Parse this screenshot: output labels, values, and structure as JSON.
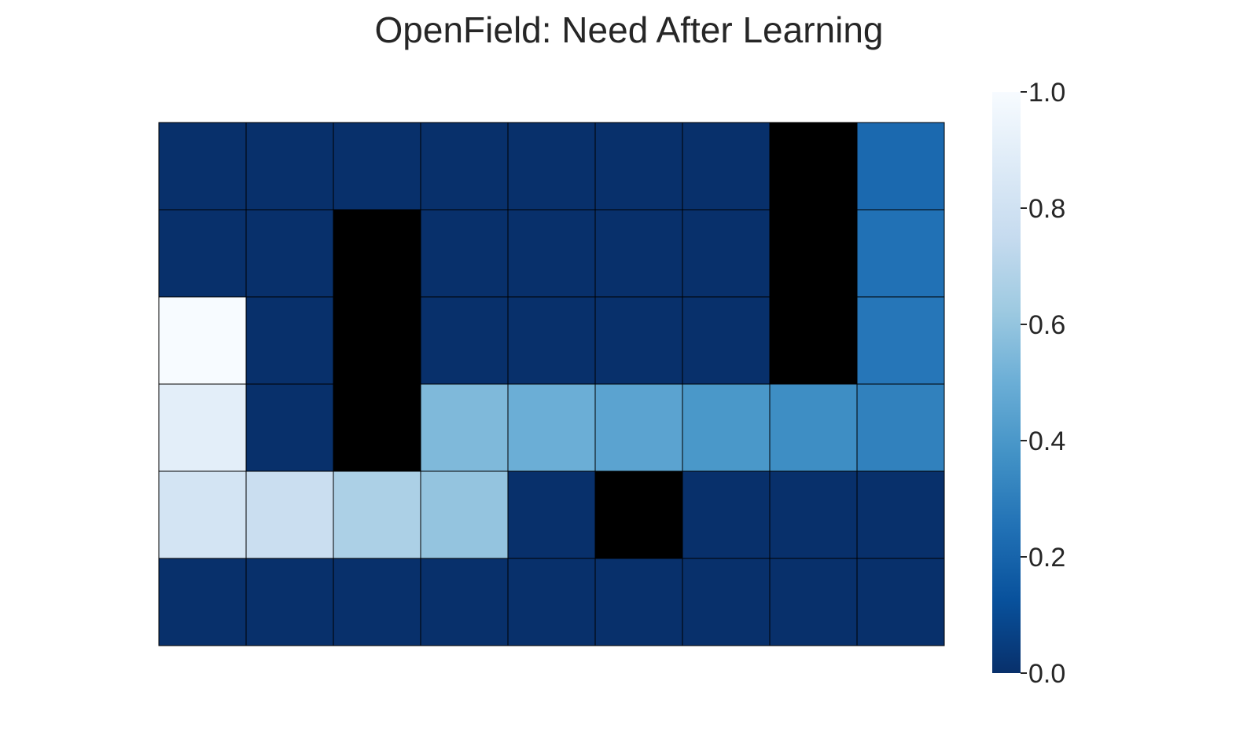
{
  "chart_data": {
    "type": "heatmap",
    "title": "OpenField: Need After Learning",
    "xlabel": "",
    "ylabel": "",
    "rows": 6,
    "cols": 9,
    "colormap": "Blues_r",
    "wall_color": "#000000",
    "cell_border_color": "#000000",
    "grid": false,
    "values": [
      [
        0.0,
        0.0,
        0.0,
        0.0,
        0.0,
        0.0,
        0.0,
        null,
        0.22
      ],
      [
        0.0,
        0.0,
        null,
        0.0,
        0.0,
        0.0,
        0.0,
        null,
        0.25
      ],
      [
        1.0,
        0.0,
        null,
        0.0,
        0.0,
        0.0,
        0.0,
        null,
        0.27
      ],
      [
        0.9,
        0.0,
        null,
        0.55,
        0.5,
        0.45,
        0.4,
        0.36,
        0.31
      ],
      [
        0.82,
        0.77,
        0.67,
        0.6,
        0.0,
        null,
        0.0,
        0.0,
        0.0
      ],
      [
        0.0,
        0.0,
        0.0,
        0.0,
        0.0,
        0.0,
        0.0,
        0.0,
        0.0
      ]
    ],
    "colorbar": {
      "min": 0.0,
      "max": 1.0,
      "ticks": [
        0.0,
        0.2,
        0.4,
        0.6,
        0.8,
        1.0
      ],
      "tick_labels": [
        "0.0",
        "0.2",
        "0.4",
        "0.6",
        "0.8",
        "1.0"
      ]
    }
  }
}
